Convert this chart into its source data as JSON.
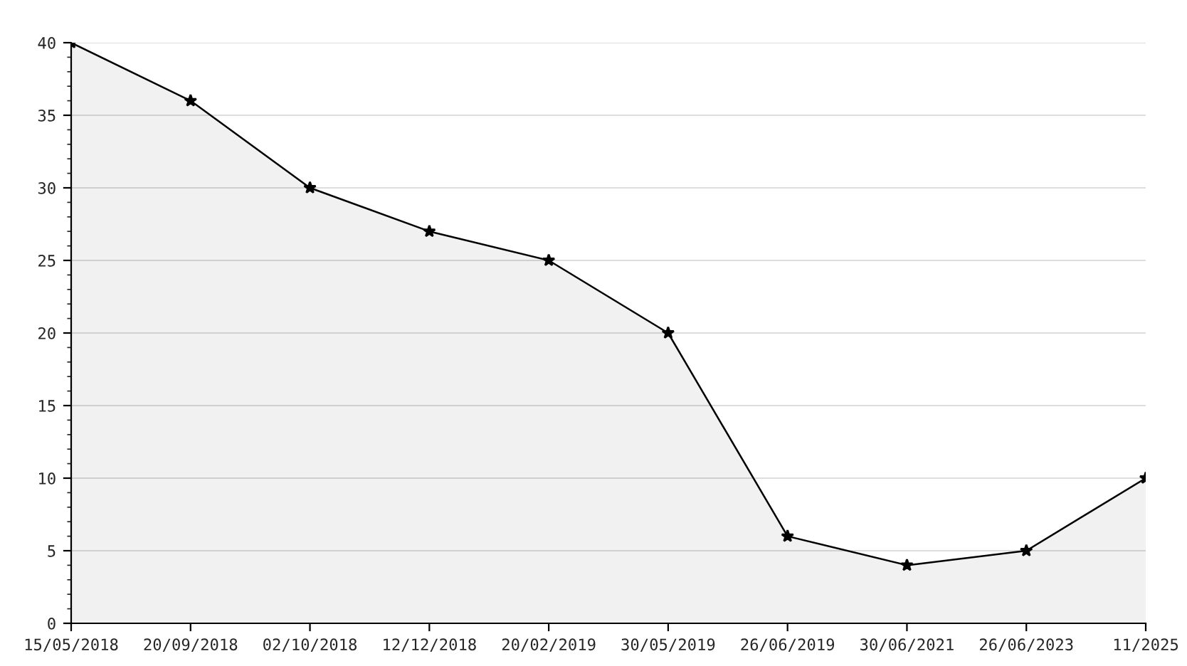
{
  "chart_data": {
    "type": "area",
    "categories": [
      "15/05/2018",
      "20/09/2018",
      "02/10/2018",
      "12/12/2018",
      "20/02/2019",
      "30/05/2019",
      "26/06/2019",
      "30/06/2021",
      "26/06/2023",
      "11/2025"
    ],
    "series": [
      {
        "color": "#000000",
        "values": [
          40,
          36,
          30,
          27,
          25,
          20,
          6,
          4,
          5,
          10
        ]
      }
    ],
    "ylim": [
      0,
      40
    ],
    "yticks": [
      0,
      5,
      10,
      15,
      20,
      25,
      30,
      35,
      40
    ],
    "grid": "y",
    "legend": false,
    "marker": "star",
    "line_style": "solid"
  }
}
